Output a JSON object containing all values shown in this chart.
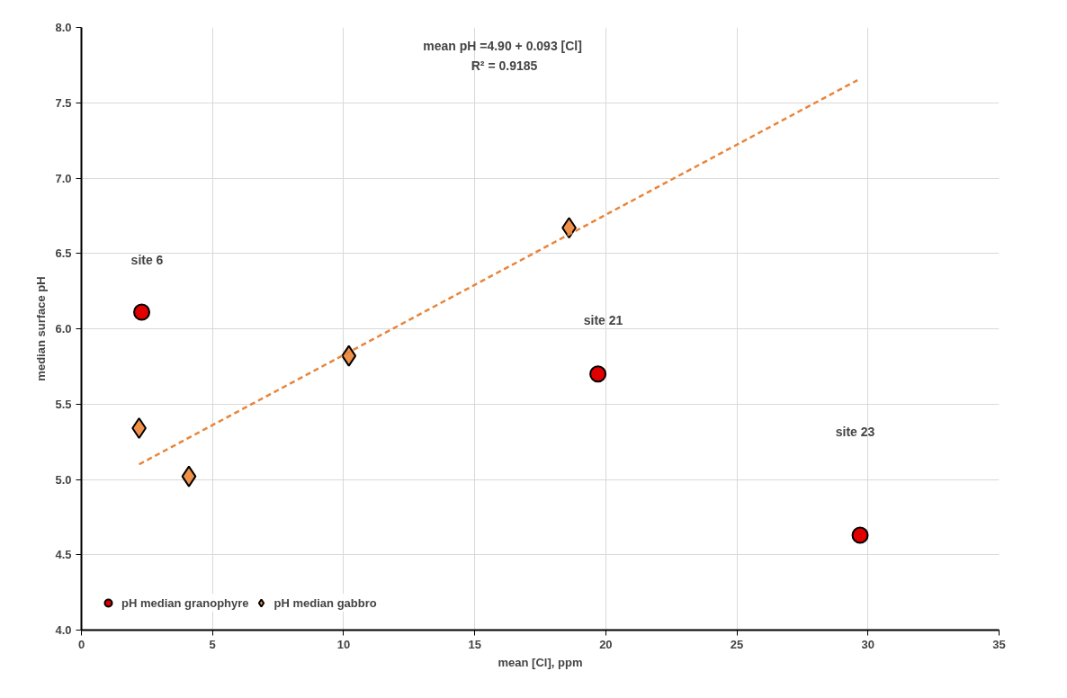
{
  "chart_data": {
    "type": "scatter",
    "xlabel": "mean [Cl], ppm",
    "ylabel": "median surface pH",
    "xlim": [
      0,
      35
    ],
    "xticks": [
      0,
      5,
      10,
      15,
      20,
      25,
      30,
      35
    ],
    "ylim": [
      4,
      8
    ],
    "yticks": [
      {
        "value": 4,
        "label": "4.0"
      },
      {
        "value": 4.5,
        "label": "4.5"
      },
      {
        "value": 5,
        "label": "5.0"
      },
      {
        "value": 5.5,
        "label": "5.5"
      },
      {
        "value": 6,
        "label": "6.0"
      },
      {
        "value": 6.5,
        "label": "6.5"
      },
      {
        "value": 7,
        "label": "7.0"
      },
      {
        "value": 7.5,
        "label": "7.5"
      },
      {
        "value": 8,
        "label": "8.0"
      }
    ],
    "grid": true,
    "legend": "bottom left",
    "series": [
      {
        "name": "pH median granophyre",
        "color": "#e00000",
        "marker": "circle",
        "x": [
          2.3,
          19.7,
          29.7
        ],
        "values": [
          6.11,
          5.7,
          4.63
        ]
      },
      {
        "name": "pH median gabbro",
        "color": "#f0914a",
        "marker": "diamond",
        "x": [
          2.2,
          4.1,
          10.2,
          18.6
        ],
        "values": [
          5.34,
          5.02,
          5.82,
          6.67
        ]
      },
      {
        "type": "line",
        "color": "#e8853a",
        "marker": "none",
        "line_style": "dashed",
        "x": [
          2.2,
          29.6
        ],
        "values": [
          5.1,
          7.65
        ]
      }
    ],
    "annotations": [
      "mean pH  =4.90 + 0.093 [Cl]",
      "R² = 0.9185",
      "site 6",
      "site 21",
      "site 23"
    ]
  }
}
